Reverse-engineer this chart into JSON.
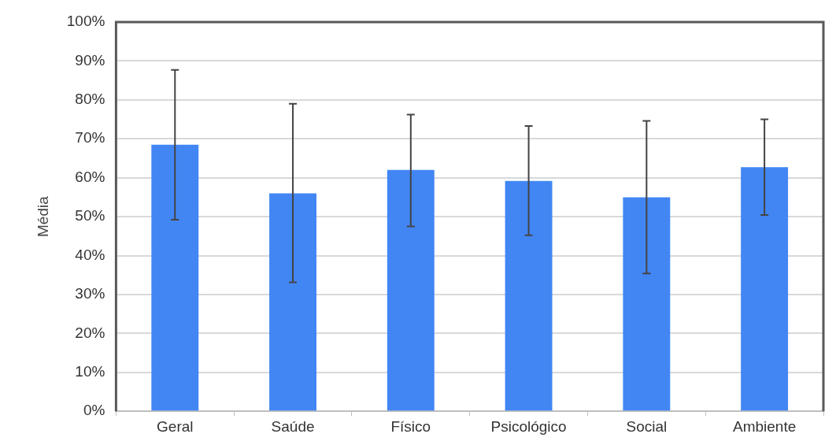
{
  "chart_data": {
    "type": "bar",
    "ylabel": "Média",
    "categories": [
      "Geral",
      "Saúde",
      "Físico",
      "Psicológico",
      "Social",
      "Ambiente"
    ],
    "series": [
      {
        "color": "#4286f4",
        "values": [
          68.5,
          56,
          62,
          59.2,
          55,
          62.7
        ],
        "errors": [
          [
            49.2,
            87.7
          ],
          [
            33.1,
            79
          ],
          [
            47.5,
            76.2
          ],
          [
            45.2,
            73.3
          ],
          [
            35.4,
            74.6
          ],
          [
            50.4,
            75
          ]
        ]
      }
    ],
    "ylim": [
      0,
      100
    ],
    "yticks": [
      {
        "value": 0,
        "label": "0%"
      },
      {
        "value": 10,
        "label": "10%"
      },
      {
        "value": 20,
        "label": "20%"
      },
      {
        "value": 30,
        "label": "30%"
      },
      {
        "value": 40,
        "label": "40%"
      },
      {
        "value": 50,
        "label": "50%"
      },
      {
        "value": 60,
        "label": "60%"
      },
      {
        "value": 70,
        "label": "70%"
      },
      {
        "value": 80,
        "label": "80%"
      },
      {
        "value": 90,
        "label": "90%"
      },
      {
        "value": 100,
        "label": "100%"
      }
    ],
    "grid": "y",
    "legend": false
  }
}
